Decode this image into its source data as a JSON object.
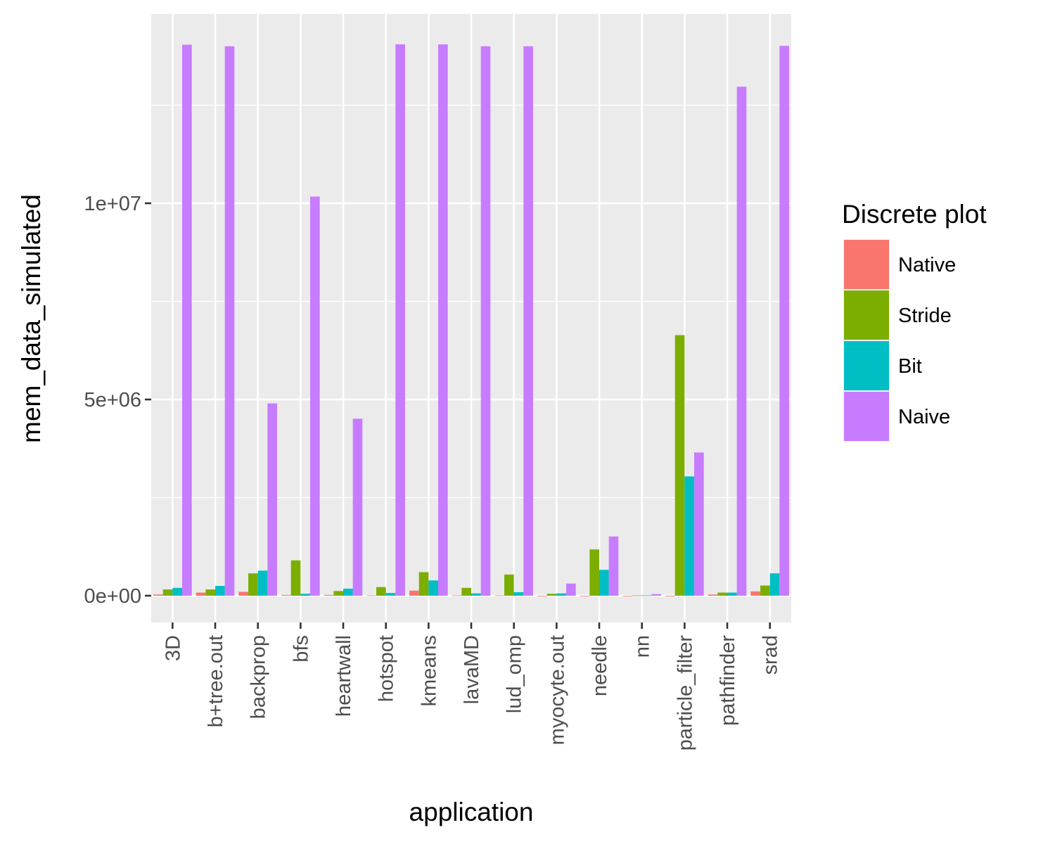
{
  "chart_data": {
    "type": "bar",
    "xlabel": "application",
    "ylabel": "mem_data_simulated",
    "ylim": [
      -700000,
      14800000
    ],
    "y_ticks": [
      0,
      5000000,
      10000000
    ],
    "y_tick_labels": [
      "0e+00",
      "5e+06",
      "1e+07"
    ],
    "grid": true,
    "legend_position": "right",
    "legend": {
      "title": "Discrete plot"
    },
    "categories": [
      "3D",
      "b+tree.out",
      "backprop",
      "bfs",
      "heartwall",
      "hotspot",
      "kmeans",
      "lavaMD",
      "lud_omp",
      "myocyte.out",
      "needle",
      "nn",
      "particle_filter",
      "pathfinder",
      "srad"
    ],
    "series": [
      {
        "name": "Native",
        "color": "#F8766D",
        "values": [
          30000,
          80000,
          100000,
          20000,
          20000,
          10000,
          130000,
          10000,
          10000,
          0,
          0,
          0,
          0,
          30000,
          110000
        ]
      },
      {
        "name": "Stride",
        "color": "#7CAE00",
        "values": [
          160000,
          160000,
          570000,
          900000,
          120000,
          220000,
          600000,
          200000,
          540000,
          50000,
          1180000,
          10000,
          6640000,
          80000,
          260000
        ]
      },
      {
        "name": "Bit",
        "color": "#00BFC4",
        "values": [
          200000,
          250000,
          640000,
          50000,
          180000,
          70000,
          390000,
          60000,
          90000,
          60000,
          660000,
          10000,
          3040000,
          80000,
          570000
        ]
      },
      {
        "name": "Naive",
        "color": "#C77CFF",
        "values": [
          14040000,
          14000000,
          4900000,
          10170000,
          4510000,
          14050000,
          14050000,
          14000000,
          14000000,
          310000,
          1510000,
          40000,
          3650000,
          12970000,
          14010000
        ]
      }
    ]
  }
}
